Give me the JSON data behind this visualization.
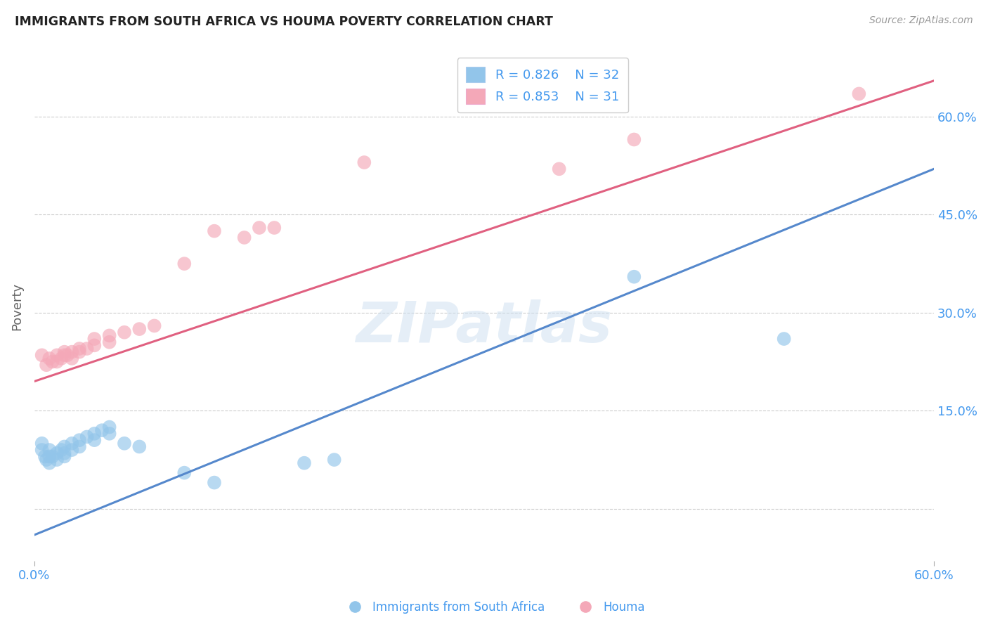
{
  "title": "IMMIGRANTS FROM SOUTH AFRICA VS HOUMA POVERTY CORRELATION CHART",
  "source": "Source: ZipAtlas.com",
  "ylabel": "Poverty",
  "watermark": "ZIPatlas",
  "legend_r1": "R = 0.826",
  "legend_n1": "N = 32",
  "legend_r2": "R = 0.853",
  "legend_n2": "N = 31",
  "xlim": [
    0.0,
    0.6
  ],
  "ylim": [
    -0.08,
    0.7
  ],
  "yticks": [
    0.0,
    0.15,
    0.3,
    0.45,
    0.6
  ],
  "ytick_labels": [
    "",
    "15.0%",
    "30.0%",
    "45.0%",
    "60.0%"
  ],
  "blue_color": "#92C5EA",
  "pink_color": "#F4A8B8",
  "blue_line_color": "#5588CC",
  "pink_line_color": "#E06080",
  "blue_scatter": [
    [
      0.005,
      0.1
    ],
    [
      0.005,
      0.09
    ],
    [
      0.007,
      0.08
    ],
    [
      0.008,
      0.075
    ],
    [
      0.01,
      0.09
    ],
    [
      0.01,
      0.08
    ],
    [
      0.01,
      0.07
    ],
    [
      0.012,
      0.08
    ],
    [
      0.015,
      0.085
    ],
    [
      0.015,
      0.075
    ],
    [
      0.018,
      0.09
    ],
    [
      0.02,
      0.085
    ],
    [
      0.02,
      0.095
    ],
    [
      0.02,
      0.08
    ],
    [
      0.025,
      0.1
    ],
    [
      0.025,
      0.09
    ],
    [
      0.03,
      0.105
    ],
    [
      0.03,
      0.095
    ],
    [
      0.035,
      0.11
    ],
    [
      0.04,
      0.105
    ],
    [
      0.04,
      0.115
    ],
    [
      0.045,
      0.12
    ],
    [
      0.05,
      0.115
    ],
    [
      0.05,
      0.125
    ],
    [
      0.06,
      0.1
    ],
    [
      0.07,
      0.095
    ],
    [
      0.1,
      0.055
    ],
    [
      0.12,
      0.04
    ],
    [
      0.18,
      0.07
    ],
    [
      0.2,
      0.075
    ],
    [
      0.4,
      0.355
    ],
    [
      0.5,
      0.26
    ]
  ],
  "pink_scatter": [
    [
      0.005,
      0.235
    ],
    [
      0.008,
      0.22
    ],
    [
      0.01,
      0.23
    ],
    [
      0.012,
      0.225
    ],
    [
      0.015,
      0.235
    ],
    [
      0.015,
      0.225
    ],
    [
      0.018,
      0.23
    ],
    [
      0.02,
      0.235
    ],
    [
      0.02,
      0.24
    ],
    [
      0.022,
      0.235
    ],
    [
      0.025,
      0.24
    ],
    [
      0.025,
      0.23
    ],
    [
      0.03,
      0.245
    ],
    [
      0.03,
      0.24
    ],
    [
      0.035,
      0.245
    ],
    [
      0.04,
      0.25
    ],
    [
      0.04,
      0.26
    ],
    [
      0.05,
      0.255
    ],
    [
      0.05,
      0.265
    ],
    [
      0.06,
      0.27
    ],
    [
      0.07,
      0.275
    ],
    [
      0.08,
      0.28
    ],
    [
      0.1,
      0.375
    ],
    [
      0.12,
      0.425
    ],
    [
      0.14,
      0.415
    ],
    [
      0.15,
      0.43
    ],
    [
      0.16,
      0.43
    ],
    [
      0.22,
      0.53
    ],
    [
      0.35,
      0.52
    ],
    [
      0.4,
      0.565
    ],
    [
      0.55,
      0.635
    ]
  ],
  "blue_line_x": [
    0.0,
    0.6
  ],
  "blue_line_y": [
    -0.04,
    0.52
  ],
  "pink_line_x": [
    0.0,
    0.6
  ],
  "pink_line_y": [
    0.195,
    0.655
  ],
  "bg_color": "#FFFFFF",
  "grid_color": "#CCCCCC",
  "label_color": "#4499EE"
}
